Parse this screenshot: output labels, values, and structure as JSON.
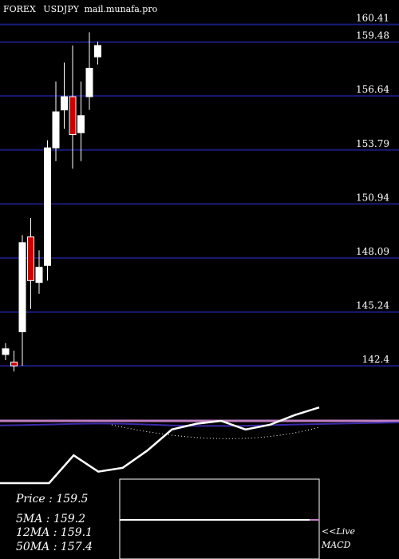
{
  "header": {
    "symbol": "FOREX",
    "ticker": "USDJPY",
    "site": "mail.munafa.pro"
  },
  "colors": {
    "background": "#000000",
    "grid": "#1a1a7a",
    "up_candle": "#ffffff",
    "down_candle": "#cc0000",
    "text": "#ffffff",
    "macd_line": "#ffffff",
    "signal_line": "#3a2aa8",
    "zero_line": "#c080c0"
  },
  "chart_data": [
    {
      "type": "candlestick",
      "title": "",
      "ylim": [
        141.9,
        161.7
      ],
      "y_ticks": [
        160.41,
        159.48,
        156.64,
        153.79,
        150.94,
        148.09,
        145.24,
        142.4
      ],
      "y_tick_labels": [
        "160.41",
        "159.48",
        "156.64",
        "153.79",
        "150.94",
        "148.09",
        "145.24",
        "142.4"
      ],
      "grid": true,
      "candles": [
        {
          "open": 143.0,
          "close": 143.3,
          "high": 143.6,
          "low": 142.7
        },
        {
          "open": 142.6,
          "close": 142.4,
          "high": 143.2,
          "low": 142.1
        },
        {
          "open": 144.2,
          "close": 148.9,
          "high": 149.3,
          "low": 142.4
        },
        {
          "open": 149.2,
          "close": 146.9,
          "high": 150.2,
          "low": 145.4
        },
        {
          "open": 146.8,
          "close": 147.6,
          "high": 148.5,
          "low": 146.2
        },
        {
          "open": 147.7,
          "close": 153.9,
          "high": 154.3,
          "low": 146.9
        },
        {
          "open": 153.9,
          "close": 155.8,
          "high": 157.4,
          "low": 153.2
        },
        {
          "open": 155.9,
          "close": 156.6,
          "high": 158.4,
          "low": 154.9
        },
        {
          "open": 156.6,
          "close": 154.6,
          "high": 159.3,
          "low": 152.8
        },
        {
          "open": 154.7,
          "close": 155.6,
          "high": 157.4,
          "low": 153.2
        },
        {
          "open": 156.6,
          "close": 158.1,
          "high": 160.0,
          "low": 155.9
        },
        {
          "open": 158.7,
          "close": 159.3,
          "high": 159.5,
          "low": 158.3
        }
      ]
    },
    {
      "type": "line",
      "title": "MACD",
      "ylim": [
        -1,
        1
      ],
      "macd": [
        -6.5,
        -6.5,
        -6.5,
        -3.6,
        -5.3,
        -4.9,
        -3.1,
        -0.9,
        -0.3,
        0.0,
        -0.9,
        -0.4,
        0.6,
        1.4
      ],
      "signal": [
        -0.15,
        -0.1,
        -0.05,
        0.02,
        0.05,
        0.03,
        -0.05,
        -0.15,
        -0.2,
        -0.2,
        -0.18,
        -0.12,
        -0.05,
        0.0
      ],
      "zero": 0
    }
  ],
  "stats": {
    "price_label": "Price",
    "price_value": "159.5",
    "ma5_label": "5MA",
    "ma5_value": "159.2",
    "ma12_label": "12MA",
    "ma12_value": "159.1",
    "ma50_label": "50MA",
    "ma50_value": "157.4"
  },
  "legend": {
    "live": "<<Live",
    "macd": "MACD"
  }
}
